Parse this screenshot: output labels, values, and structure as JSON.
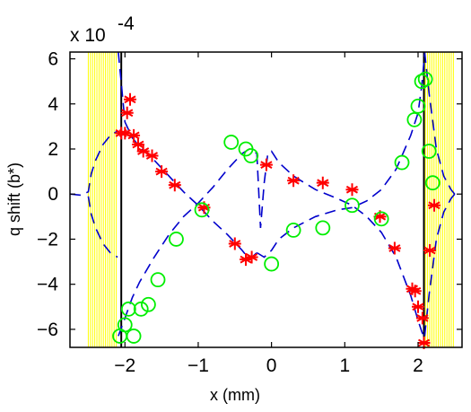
{
  "chart_data": {
    "type": "scatter",
    "title": "",
    "xlabel": "x (mm)",
    "ylabel": "q shift (b*)",
    "y_multiplier": {
      "base": "x 10",
      "exponent": "-4"
    },
    "xlim": [
      -2.75,
      2.6
    ],
    "ylim": [
      -6.8,
      6.3
    ],
    "x_ticks": [
      -2,
      -1,
      0,
      1,
      2
    ],
    "x_tick_labels": [
      "−2",
      "−1",
      "0",
      "1",
      "2"
    ],
    "y_ticks": [
      6,
      4,
      2,
      0,
      -2,
      -4,
      -6
    ],
    "y_tick_labels": [
      "6",
      "4",
      "2",
      "0",
      "−2",
      "−4",
      "−6"
    ],
    "grid": false,
    "legend": "none",
    "shaded_regions": [
      {
        "x0": -2.5,
        "x1": -2.1,
        "color": "#ffff00"
      },
      {
        "x0": 2.1,
        "x1": 2.5,
        "color": "#ffff00"
      }
    ],
    "vertical_lines": [
      -2.05,
      2.08
    ],
    "series": [
      {
        "marker": "asterisk",
        "color": "#ff0000",
        "x": [
          -2.05,
          -2.0,
          -1.97,
          -1.93,
          -1.88,
          -1.82,
          -1.75,
          -1.63,
          -1.5,
          -1.32,
          -0.92,
          -0.5,
          -0.35,
          -0.27,
          -0.07,
          0.3,
          0.7,
          1.1,
          1.48,
          1.68,
          1.92,
          1.96,
          2.0,
          2.06,
          2.08,
          2.16,
          2.22
        ],
        "y": [
          2.7,
          2.7,
          3.6,
          4.2,
          2.6,
          2.2,
          1.9,
          1.7,
          1.0,
          0.4,
          -0.6,
          -2.2,
          -2.9,
          -2.8,
          1.3,
          0.6,
          0.5,
          0.2,
          -1.0,
          -2.4,
          -4.2,
          -4.3,
          -5.0,
          -5.5,
          -6.6,
          -2.5,
          -0.5
        ]
      },
      {
        "marker": "circle",
        "color": "#00ee00",
        "x": [
          -2.07,
          -2.0,
          -1.95,
          -1.88,
          -1.78,
          -1.68,
          -1.55,
          -1.3,
          -0.95,
          -0.55,
          -0.35,
          -0.28,
          0.0,
          0.3,
          0.7,
          1.1,
          1.5,
          1.78,
          1.95,
          2.0,
          2.05,
          2.1,
          2.15,
          2.2
        ],
        "y": [
          -6.3,
          -5.8,
          -5.1,
          -6.3,
          -5.1,
          -4.9,
          -3.8,
          -2.0,
          -0.7,
          2.3,
          2.0,
          1.7,
          -3.1,
          -1.6,
          -1.5,
          -0.5,
          -1.1,
          1.4,
          3.3,
          3.9,
          5.0,
          5.1,
          1.9,
          0.5
        ]
      }
    ],
    "curves": [
      {
        "style": "dashed",
        "color": "#0000cc",
        "x": [
          -2.09,
          -2.0,
          -1.9,
          -1.8,
          -1.6,
          -1.4,
          -1.2,
          -1.0,
          -0.8,
          -0.6,
          -0.4,
          -0.3,
          -0.2
        ],
        "y": [
          6.3,
          3.2,
          2.5,
          2.1,
          1.5,
          0.8,
          0.1,
          -0.5,
          -1.2,
          -1.8,
          -2.5,
          -2.9,
          -2.6
        ]
      },
      {
        "style": "dashed",
        "color": "#0000cc",
        "x": [
          -2.09,
          -2.0,
          -1.9,
          -1.8,
          -1.6,
          -1.4,
          -1.2,
          -1.0,
          -0.8,
          -0.6,
          -0.4,
          -0.3,
          -0.2
        ],
        "y": [
          -6.3,
          -5.5,
          -4.6,
          -3.9,
          -2.8,
          -1.8,
          -1.0,
          -0.4,
          0.3,
          1.1,
          1.8,
          2.0,
          1.8
        ]
      },
      {
        "style": "dashed",
        "color": "#0000cc",
        "x": [
          -0.2,
          -0.15,
          -0.1,
          -0.05,
          0.0,
          0.1,
          0.3,
          0.6,
          0.9,
          1.1,
          1.3,
          1.5,
          1.7,
          1.9,
          2.0,
          2.05,
          2.09
        ],
        "y": [
          1.8,
          -1.5,
          0.5,
          1.8,
          1.9,
          1.4,
          0.8,
          0.2,
          -0.2,
          -0.5,
          -1.0,
          -1.7,
          -2.8,
          -4.5,
          -5.6,
          -6.1,
          -6.4
        ]
      },
      {
        "style": "dashed",
        "color": "#0000cc",
        "x": [
          -0.2,
          -0.1,
          0.0,
          0.1,
          0.3,
          0.6,
          0.9,
          1.1,
          1.3,
          1.5,
          1.7,
          1.9,
          2.0,
          2.05,
          2.09
        ],
        "y": [
          -2.6,
          -2.8,
          -2.5,
          -2.0,
          -1.5,
          -1.0,
          -0.7,
          -0.6,
          -0.3,
          0.2,
          1.1,
          2.6,
          3.6,
          4.8,
          6.2
        ]
      },
      {
        "style": "dashed",
        "color": "#0000cc",
        "x": [
          -2.75,
          -2.6,
          -2.5,
          -2.46,
          -2.4,
          -2.3,
          -2.2,
          -2.1
        ],
        "y": [
          0.0,
          -0.05,
          0.1,
          0.9,
          1.5,
          2.2,
          2.6,
          2.8
        ]
      },
      {
        "style": "dashed",
        "color": "#0000cc",
        "x": [
          -2.5,
          -2.46,
          -2.4,
          -2.3,
          -2.2,
          -2.1
        ],
        "y": [
          -0.1,
          -0.9,
          -1.5,
          -2.2,
          -2.6,
          -2.8
        ]
      },
      {
        "style": "dashed",
        "color": "#0000cc",
        "x": [
          2.09,
          2.15,
          2.25,
          2.35,
          2.45,
          2.5,
          2.6
        ],
        "y": [
          6.3,
          4.5,
          2.0,
          0.8,
          0.2,
          0.0,
          0.0
        ]
      },
      {
        "style": "dashed",
        "color": "#0000cc",
        "x": [
          2.09,
          2.15,
          2.25,
          2.35,
          2.45,
          2.5
        ],
        "y": [
          -6.3,
          -4.5,
          -2.0,
          -0.8,
          -0.2,
          0.0
        ]
      }
    ]
  }
}
